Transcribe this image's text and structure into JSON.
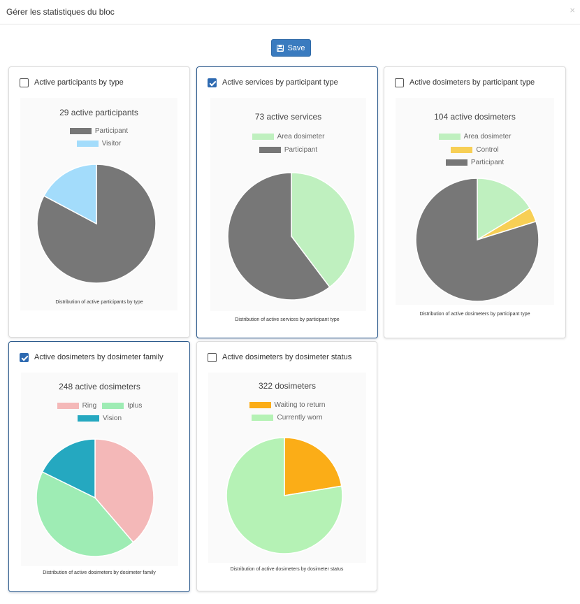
{
  "modal": {
    "title": "Gérer les statistiques du bloc",
    "close_symbol": "×"
  },
  "toolbar": {
    "save_label": "Save"
  },
  "cards": [
    {
      "label": "Active participants by type",
      "checked": false,
      "chart_data": {
        "type": "pie",
        "title": "29 active participants",
        "legend": [
          {
            "name": "Participant",
            "color": "#777777"
          },
          {
            "name": "Visitor",
            "color": "#a3dcfb"
          }
        ],
        "slices": [
          {
            "name": "Participant",
            "value": 24,
            "color": "#777777"
          },
          {
            "name": "Visitor",
            "value": 5,
            "color": "#a3dcfb"
          }
        ],
        "caption": "Distribution of active participants by type"
      }
    },
    {
      "label": "Active services by participant type",
      "checked": true,
      "chart_data": {
        "type": "pie",
        "title": "73 active services",
        "legend": [
          {
            "name": "Area dosimeter",
            "color": "#bff0bf"
          },
          {
            "name": "Participant",
            "color": "#777777"
          }
        ],
        "slices": [
          {
            "name": "Area dosimeter",
            "value": 29,
            "color": "#bff0bf"
          },
          {
            "name": "Participant",
            "value": 44,
            "color": "#777777"
          }
        ],
        "caption": "Distribution of active services by participant type"
      }
    },
    {
      "label": "Active dosimeters by participant type",
      "checked": false,
      "chart_data": {
        "type": "pie",
        "title": "104 active dosimeters",
        "legend": [
          {
            "name": "Area dosimeter",
            "color": "#bff0bf"
          },
          {
            "name": "Control",
            "color": "#f7cf55"
          },
          {
            "name": "Participant",
            "color": "#777777"
          }
        ],
        "slices": [
          {
            "name": "Area dosimeter",
            "value": 17,
            "color": "#bff0bf"
          },
          {
            "name": "Control",
            "value": 4,
            "color": "#f7cf55"
          },
          {
            "name": "Participant",
            "value": 83,
            "color": "#777777"
          }
        ],
        "caption": "Distribution of active dosimeters by participant type"
      }
    },
    {
      "label": "Active dosimeters by dosimeter family",
      "checked": true,
      "chart_data": {
        "type": "pie",
        "title": "248 active dosimeters",
        "legend": [
          {
            "name": "Ring",
            "color": "#f4b8b8"
          },
          {
            "name": "Iplus",
            "color": "#9eecb4"
          },
          {
            "name": "Vision",
            "color": "#25a8c0"
          }
        ],
        "slices": [
          {
            "name": "Ring",
            "value": 96,
            "color": "#f4b8b8"
          },
          {
            "name": "Iplus",
            "value": 108,
            "color": "#9eecb4"
          },
          {
            "name": "Vision",
            "value": 44,
            "color": "#25a8c0"
          }
        ],
        "caption": "Distribution of active dosimeters by dosimeter family"
      }
    },
    {
      "label": "Active dosimeters by dosimeter status",
      "checked": false,
      "chart_data": {
        "type": "pie",
        "title": "322 dosimeters",
        "legend": [
          {
            "name": "Waiting to return",
            "color": "#fbad17"
          },
          {
            "name": "Currently worn",
            "color": "#b5f2b5"
          }
        ],
        "slices": [
          {
            "name": "Waiting to return",
            "value": 72,
            "color": "#fbad17"
          },
          {
            "name": "Currently worn",
            "value": 250,
            "color": "#b5f2b5"
          }
        ],
        "caption": "Distribution of active dosimeters by dosimeter status"
      }
    }
  ]
}
